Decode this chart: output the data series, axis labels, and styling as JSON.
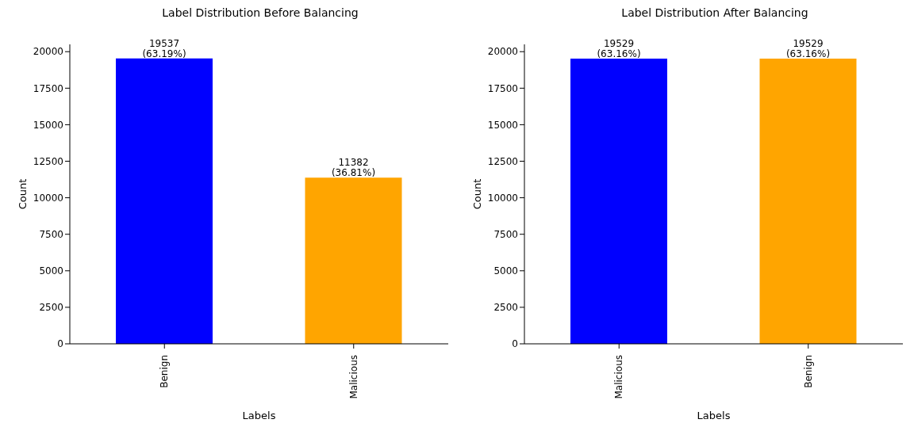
{
  "chart_data": [
    {
      "type": "bar",
      "title": "Label Distribution Before Balancing",
      "xlabel": "Labels",
      "ylabel": "Count",
      "categories": [
        "Benign",
        "Malicious"
      ],
      "values": [
        19537,
        11382
      ],
      "colors": [
        "#0000ff",
        "#ffa500"
      ],
      "value_labels": [
        "19537\n(63.19%)",
        "11382\n(36.81%)"
      ],
      "ylim": [
        0,
        20500
      ],
      "yticks": [
        0,
        2500,
        5000,
        7500,
        10000,
        12500,
        15000,
        17500,
        20000
      ],
      "grid": false,
      "legend": false
    },
    {
      "type": "bar",
      "title": "Label Distribution After Balancing",
      "xlabel": "Labels",
      "ylabel": "Count",
      "categories": [
        "Malicious",
        "Benign"
      ],
      "values": [
        19529,
        19529
      ],
      "colors": [
        "#0000ff",
        "#ffa500"
      ],
      "value_labels": [
        "19529\n(63.16%)",
        "19529\n(63.16%)"
      ],
      "ylim": [
        0,
        20500
      ],
      "yticks": [
        0,
        2500,
        5000,
        7500,
        10000,
        12500,
        15000,
        17500,
        20000
      ],
      "grid": false,
      "legend": false
    }
  ]
}
